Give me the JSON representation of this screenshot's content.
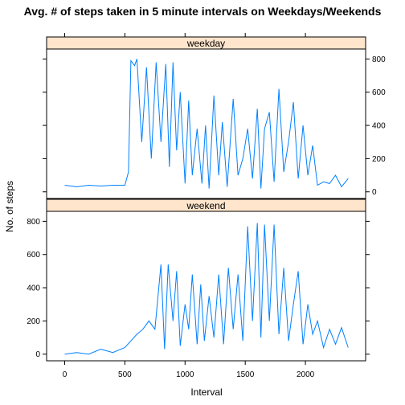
{
  "chart_data": {
    "type": "line",
    "title": "Avg. # of steps taken in 5 minute intervals on Weekdays/Weekends",
    "xlabel": "Interval",
    "ylabel": "No. of steps",
    "xlim": [
      -150,
      2500
    ],
    "ylim": [
      -40,
      860
    ],
    "x_ticks": [
      0,
      500,
      1000,
      1500,
      2000
    ],
    "y_ticks": [
      0,
      200,
      400,
      600,
      800
    ],
    "line_color": "#0080ff",
    "strip_color": "#ffe5cc",
    "panels": [
      {
        "name": "weekday",
        "y_axis_side": "right",
        "x": [
          0,
          100,
          200,
          300,
          400,
          500,
          530,
          550,
          580,
          600,
          640,
          680,
          720,
          760,
          800,
          840,
          870,
          900,
          930,
          960,
          1000,
          1030,
          1060,
          1100,
          1140,
          1170,
          1200,
          1240,
          1280,
          1310,
          1350,
          1400,
          1440,
          1480,
          1520,
          1560,
          1600,
          1630,
          1660,
          1700,
          1740,
          1780,
          1820,
          1860,
          1900,
          1940,
          1980,
          2020,
          2060,
          2100,
          2150,
          2200,
          2250,
          2300,
          2355
        ],
        "values": [
          40,
          30,
          40,
          35,
          40,
          40,
          120,
          790,
          760,
          800,
          300,
          750,
          200,
          780,
          300,
          770,
          150,
          780,
          250,
          600,
          50,
          550,
          100,
          380,
          50,
          400,
          20,
          580,
          100,
          420,
          30,
          560,
          100,
          200,
          380,
          80,
          500,
          20,
          380,
          480,
          60,
          620,
          120,
          300,
          540,
          80,
          400,
          100,
          280,
          40,
          60,
          50,
          100,
          30,
          80
        ]
      },
      {
        "name": "weekend",
        "y_axis_side": "left",
        "x": [
          0,
          100,
          200,
          300,
          400,
          500,
          550,
          600,
          650,
          700,
          750,
          800,
          830,
          860,
          900,
          930,
          960,
          1000,
          1030,
          1060,
          1100,
          1130,
          1160,
          1200,
          1240,
          1280,
          1320,
          1360,
          1400,
          1440,
          1480,
          1520,
          1560,
          1600,
          1630,
          1660,
          1700,
          1740,
          1780,
          1820,
          1860,
          1900,
          1940,
          1980,
          2020,
          2060,
          2100,
          2150,
          2200,
          2250,
          2300,
          2355
        ],
        "values": [
          0,
          10,
          0,
          30,
          10,
          40,
          80,
          120,
          150,
          200,
          150,
          540,
          30,
          540,
          200,
          500,
          50,
          300,
          150,
          480,
          60,
          420,
          80,
          350,
          100,
          480,
          60,
          520,
          150,
          480,
          80,
          770,
          200,
          790,
          100,
          780,
          200,
          780,
          120,
          520,
          80,
          300,
          500,
          60,
          300,
          120,
          200,
          40,
          150,
          60,
          160,
          40
        ]
      }
    ]
  }
}
